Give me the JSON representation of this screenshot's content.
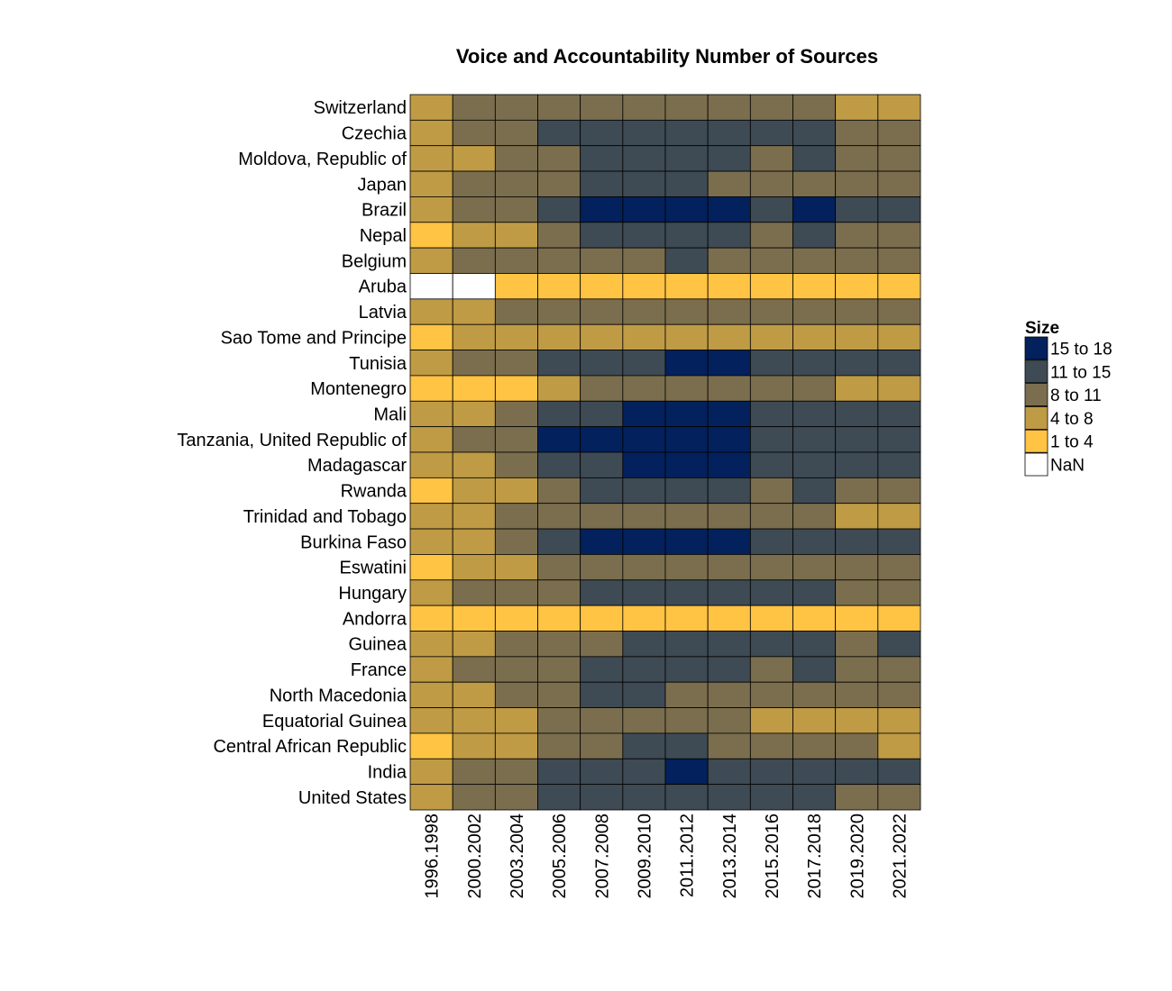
{
  "chart_data": {
    "type": "heatmap",
    "title": "Voice and Accountability Number of Sources",
    "columns": [
      "1996.1998",
      "2000.2002",
      "2003.2004",
      "2005.2006",
      "2007.2008",
      "2009.2010",
      "2011.2012",
      "2013.2014",
      "2015.2016",
      "2017.2018",
      "2019.2020",
      "2021.2022"
    ],
    "rows": [
      "Switzerland",
      "Czechia",
      "Moldova, Republic of",
      "Japan",
      "Brazil",
      "Nepal",
      "Belgium",
      "Aruba",
      "Latvia",
      "Sao Tome and Principe",
      "Tunisia",
      "Montenegro",
      "Mali",
      "Tanzania, United Republic of",
      "Madagascar",
      "Rwanda",
      "Trinidad and Tobago",
      "Burkina Faso",
      "Eswatini",
      "Hungary",
      "Andorra",
      "Guinea",
      "France",
      "North Macedonia",
      "Equatorial Guinea",
      "Central African Republic",
      "India",
      "United States"
    ],
    "legend": {
      "title": "Size",
      "position": "right",
      "items": [
        {
          "label": "15 to 18",
          "color": "#03215d"
        },
        {
          "label": "11 to 15",
          "color": "#3e4a54"
        },
        {
          "label": "8 to 11",
          "color": "#7b6e4e"
        },
        {
          "label": "4 to 8",
          "color": "#bf9b45"
        },
        {
          "label": "1 to 4",
          "color": "#ffc443"
        },
        {
          "label": "NaN",
          "color": "#ffffff"
        }
      ]
    },
    "cell_bins": [
      [
        3,
        2,
        2,
        2,
        2,
        2,
        2,
        2,
        2,
        2,
        3,
        3
      ],
      [
        3,
        2,
        2,
        1,
        1,
        1,
        1,
        1,
        1,
        1,
        2,
        2
      ],
      [
        3,
        3,
        2,
        2,
        1,
        1,
        1,
        1,
        2,
        1,
        2,
        2
      ],
      [
        3,
        2,
        2,
        2,
        1,
        1,
        1,
        2,
        2,
        2,
        2,
        2
      ],
      [
        3,
        2,
        2,
        1,
        0,
        0,
        0,
        0,
        1,
        0,
        1,
        1
      ],
      [
        4,
        3,
        3,
        2,
        1,
        1,
        1,
        1,
        2,
        1,
        2,
        2
      ],
      [
        3,
        2,
        2,
        2,
        2,
        2,
        1,
        2,
        2,
        2,
        2,
        2
      ],
      [
        5,
        5,
        4,
        4,
        4,
        4,
        4,
        4,
        4,
        4,
        4,
        4
      ],
      [
        3,
        3,
        2,
        2,
        2,
        2,
        2,
        2,
        2,
        2,
        2,
        2
      ],
      [
        4,
        3,
        3,
        3,
        3,
        3,
        3,
        3,
        3,
        3,
        3,
        3
      ],
      [
        3,
        2,
        2,
        1,
        1,
        1,
        0,
        0,
        1,
        1,
        1,
        1
      ],
      [
        4,
        4,
        4,
        3,
        2,
        2,
        2,
        2,
        2,
        2,
        3,
        3
      ],
      [
        3,
        3,
        2,
        1,
        1,
        0,
        0,
        0,
        1,
        1,
        1,
        1
      ],
      [
        3,
        2,
        2,
        0,
        0,
        0,
        0,
        0,
        1,
        1,
        1,
        1
      ],
      [
        3,
        3,
        2,
        1,
        1,
        0,
        0,
        0,
        1,
        1,
        1,
        1
      ],
      [
        4,
        3,
        3,
        2,
        1,
        1,
        1,
        1,
        2,
        1,
        2,
        2
      ],
      [
        3,
        3,
        2,
        2,
        2,
        2,
        2,
        2,
        2,
        2,
        3,
        3
      ],
      [
        3,
        3,
        2,
        1,
        0,
        0,
        0,
        0,
        1,
        1,
        1,
        1
      ],
      [
        4,
        3,
        3,
        2,
        2,
        2,
        2,
        2,
        2,
        2,
        2,
        2
      ],
      [
        3,
        2,
        2,
        2,
        1,
        1,
        1,
        1,
        1,
        1,
        2,
        2
      ],
      [
        4,
        4,
        4,
        4,
        4,
        4,
        4,
        4,
        4,
        4,
        4,
        4
      ],
      [
        3,
        3,
        2,
        2,
        2,
        1,
        1,
        1,
        1,
        1,
        2,
        1
      ],
      [
        3,
        2,
        2,
        2,
        1,
        1,
        1,
        1,
        2,
        1,
        2,
        2
      ],
      [
        3,
        3,
        2,
        2,
        1,
        1,
        2,
        2,
        2,
        2,
        2,
        2
      ],
      [
        3,
        3,
        3,
        2,
        2,
        2,
        2,
        2,
        3,
        3,
        3,
        3
      ],
      [
        4,
        3,
        3,
        2,
        2,
        1,
        1,
        2,
        2,
        2,
        2,
        3
      ],
      [
        3,
        2,
        2,
        1,
        1,
        1,
        0,
        1,
        1,
        1,
        1,
        1
      ],
      [
        3,
        2,
        2,
        1,
        1,
        1,
        1,
        1,
        1,
        1,
        2,
        2
      ]
    ]
  }
}
